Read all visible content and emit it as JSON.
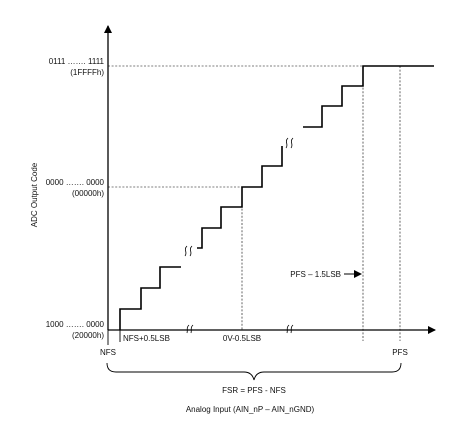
{
  "y_axis_title": "ADC Output Code",
  "x_axis_title": "Analog Input (AIN_nP – AIN_nGND)",
  "y_labels": {
    "top_code": "0111 ……. 1111",
    "top_hex": "(1FFFFh)",
    "mid_code": "0000 ……. 0000",
    "mid_hex": "(00000h)",
    "bottom_code": "1000 ……. 0000",
    "bottom_hex": "(20000h)"
  },
  "x_labels": {
    "nfs": "NFS",
    "nfs_half_lsb": "NFS+0.5LSB",
    "zero_half_lsb": "0V-0.5LSB",
    "pfs": "PFS"
  },
  "annotations": {
    "pfs_minus": "PFS – 1.5LSB",
    "fsr": "FSR = PFS - NFS"
  }
}
